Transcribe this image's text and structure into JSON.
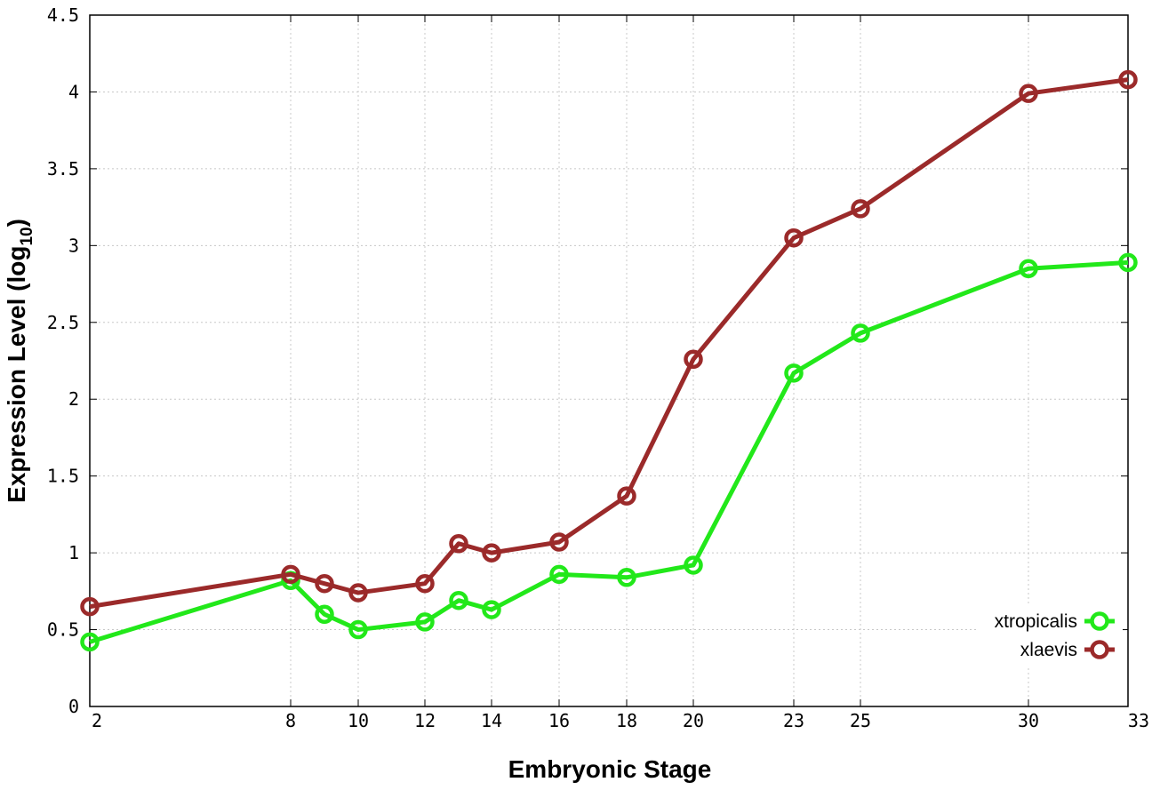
{
  "chart_data": {
    "type": "line",
    "title": "",
    "xlabel": "Embryonic Stage",
    "ylabel": "Expression Level (log",
    "ylabel_sub": "10",
    "ylabel_close": ")",
    "x_ticks": [
      "2",
      "8",
      "10",
      "12",
      "14",
      "16",
      "18",
      "20",
      "23",
      "25",
      "30",
      "33"
    ],
    "x_tick_order": [
      2,
      8,
      9,
      10,
      12,
      13,
      14,
      16,
      18,
      20,
      23,
      25,
      30,
      33
    ],
    "y_ticks": [
      "0",
      "0.5",
      "1",
      "1.5",
      "2",
      "2.5",
      "3",
      "3.5",
      "4",
      "4.5"
    ],
    "ylim": [
      0,
      4.5
    ],
    "grid": true,
    "legend_position": "bottom-right",
    "series": [
      {
        "name": "xtropicalis",
        "color": "#22e81a",
        "x": [
          2,
          8,
          9,
          10,
          12,
          13,
          14,
          16,
          18,
          20,
          23,
          25,
          30,
          33
        ],
        "y": [
          0.42,
          0.82,
          0.6,
          0.5,
          0.55,
          0.69,
          0.63,
          0.86,
          0.84,
          0.92,
          2.17,
          2.43,
          2.85,
          2.89
        ]
      },
      {
        "name": "xlaevis",
        "color": "#9b2a2a",
        "x": [
          2,
          8,
          9,
          10,
          12,
          13,
          14,
          16,
          18,
          20,
          23,
          25,
          30,
          33
        ],
        "y": [
          0.65,
          0.86,
          0.8,
          0.74,
          0.8,
          1.06,
          1.0,
          1.07,
          1.37,
          2.26,
          3.05,
          3.24,
          3.99,
          4.08
        ]
      }
    ]
  }
}
